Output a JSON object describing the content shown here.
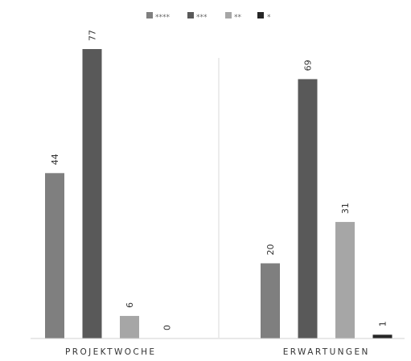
{
  "chart_data": {
    "type": "bar",
    "categories": [
      "PROJEKTWOCHE",
      "ERWARTUNGEN"
    ],
    "series": [
      {
        "name": "****",
        "values": [
          44,
          20
        ],
        "color": "#7f7f7f"
      },
      {
        "name": "***",
        "values": [
          77,
          69
        ],
        "color": "#595959"
      },
      {
        "name": "**",
        "values": [
          6,
          31
        ],
        "color": "#a6a6a6"
      },
      {
        "name": "*",
        "values": [
          0,
          1
        ],
        "color": "#262626"
      }
    ],
    "title": "",
    "xlabel": "",
    "ylabel": "",
    "ylim": [
      0,
      80
    ],
    "grid": false,
    "legend_position": "top-center",
    "data_labels": true
  }
}
